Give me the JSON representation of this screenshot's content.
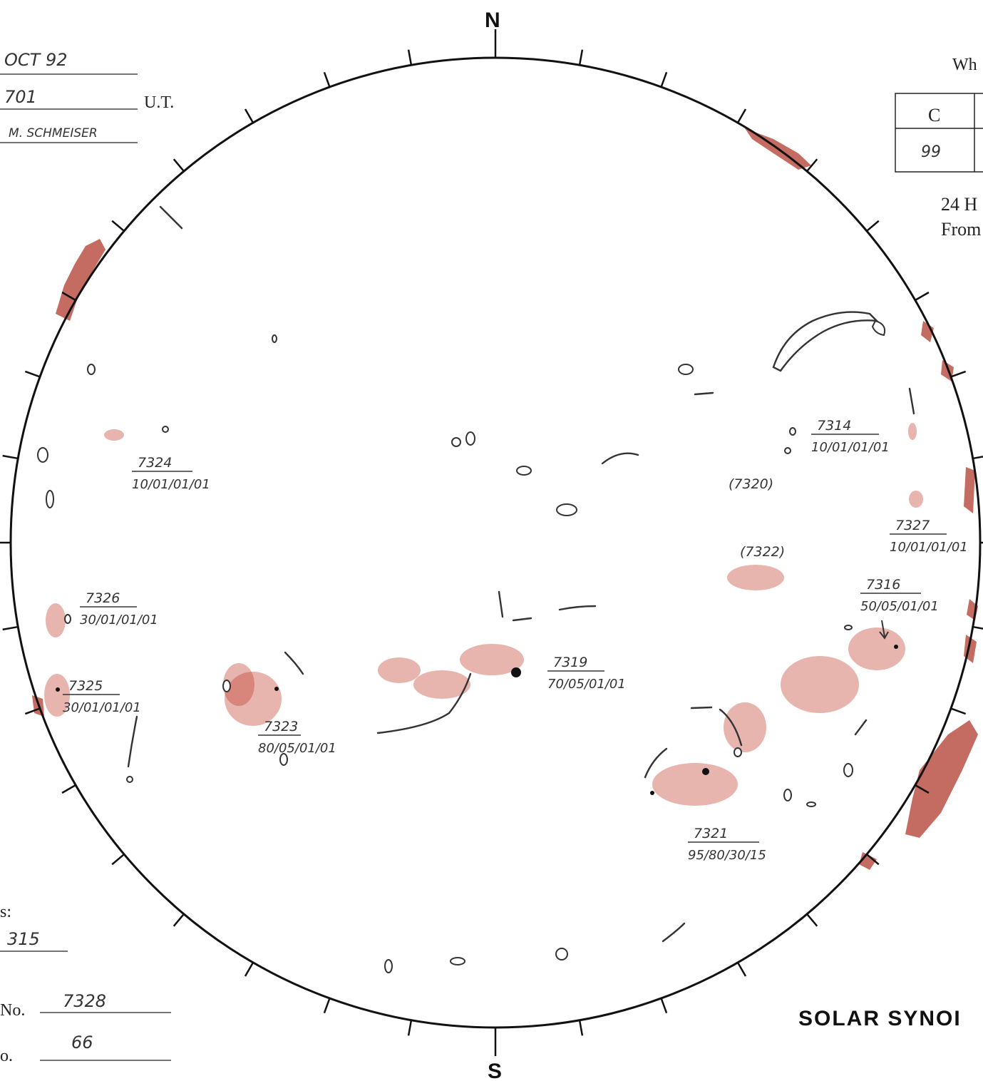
{
  "header": {
    "date_value": "OCT 92",
    "time_value": "701",
    "time_unit": "U.T.",
    "observer_value": "M. SCHMEISER",
    "top_right_label": "Wh"
  },
  "compass": {
    "north": "N",
    "south": "S"
  },
  "class_table": {
    "header_label": "C",
    "value": "99"
  },
  "right_notes": {
    "line1": "24 H",
    "line2": "From"
  },
  "footer": {
    "left_label": "s:",
    "left_value": "315",
    "no_label_1": "No.",
    "no_value_1": "7328",
    "no_label_2": "o.",
    "no_value_2": "66",
    "title": "SOLAR SYNOI"
  },
  "regions": [
    {
      "id": "r7324",
      "number": "7324",
      "code": "10/01/01/01"
    },
    {
      "id": "r7326",
      "number": "7326",
      "code": "30/01/01/01"
    },
    {
      "id": "r7325",
      "number": "7325",
      "code": "30/01/01/01"
    },
    {
      "id": "r7323",
      "number": "7323",
      "code": "80/05/01/01"
    },
    {
      "id": "r7319",
      "number": "7319",
      "code": "70/05/01/01"
    },
    {
      "id": "r7314",
      "number": "7314",
      "code": "10/01/01/01"
    },
    {
      "id": "r7327",
      "number": "7327",
      "code": "10/01/01/01"
    },
    {
      "id": "r7316",
      "number": "7316",
      "code": "50/05/01/01"
    },
    {
      "id": "r7321",
      "number": "7321",
      "code": "95/80/30/15"
    }
  ],
  "paren_labels": {
    "a": "(7320)",
    "b": "(7322)"
  },
  "colors": {
    "plage": "#c0392b",
    "ink": "#333333",
    "disk": "#111111"
  }
}
